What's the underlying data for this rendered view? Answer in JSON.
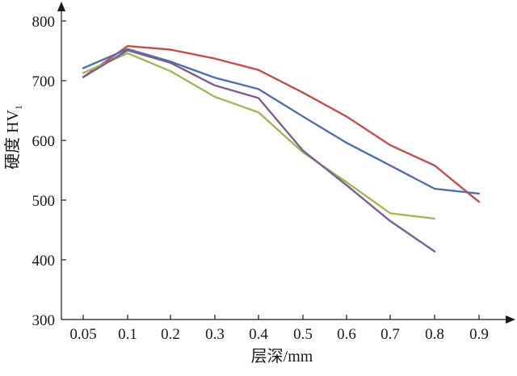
{
  "chart_data": {
    "type": "line",
    "xlabel": "层深/mm",
    "ylabel": "硬度 HV",
    "ylabel_subscript": "1",
    "categories": [
      "0.05",
      "0.1",
      "0.2",
      "0.3",
      "0.4",
      "0.5",
      "0.6",
      "0.7",
      "0.8",
      "0.9"
    ],
    "yticks": [
      "300",
      "400",
      "500",
      "600",
      "700",
      "800"
    ],
    "ylim": [
      300,
      800
    ],
    "xlim": [
      0.05,
      0.9
    ],
    "grid": false,
    "legend": "none",
    "series": [
      {
        "color": "#c0504d",
        "points": [
          [
            0.05,
            706
          ],
          [
            0.1,
            758
          ],
          [
            0.2,
            752
          ],
          [
            0.3,
            737
          ],
          [
            0.4,
            718
          ],
          [
            0.5,
            680
          ],
          [
            0.6,
            640
          ],
          [
            0.7,
            592
          ],
          [
            0.8,
            558
          ],
          [
            0.9,
            497
          ]
        ]
      },
      {
        "color": "#4f6faf",
        "points": [
          [
            0.05,
            721
          ],
          [
            0.1,
            753
          ],
          [
            0.2,
            732
          ],
          [
            0.3,
            705
          ],
          [
            0.4,
            686
          ],
          [
            0.5,
            640
          ],
          [
            0.6,
            596
          ],
          [
            0.7,
            558
          ],
          [
            0.8,
            519
          ],
          [
            0.9,
            511
          ]
        ]
      },
      {
        "color": "#9bbb59",
        "points": [
          [
            0.05,
            713
          ],
          [
            0.1,
            746
          ],
          [
            0.2,
            716
          ],
          [
            0.3,
            673
          ],
          [
            0.4,
            647
          ],
          [
            0.5,
            580
          ],
          [
            0.6,
            530
          ],
          [
            0.7,
            478
          ],
          [
            0.8,
            469
          ]
        ]
      },
      {
        "color": "#7d5f8f",
        "points": [
          [
            0.05,
            706
          ],
          [
            0.1,
            751
          ],
          [
            0.2,
            730
          ],
          [
            0.3,
            692
          ],
          [
            0.4,
            671
          ],
          [
            0.5,
            583
          ],
          [
            0.6,
            525
          ],
          [
            0.7,
            465
          ],
          [
            0.8,
            414
          ]
        ]
      }
    ]
  }
}
